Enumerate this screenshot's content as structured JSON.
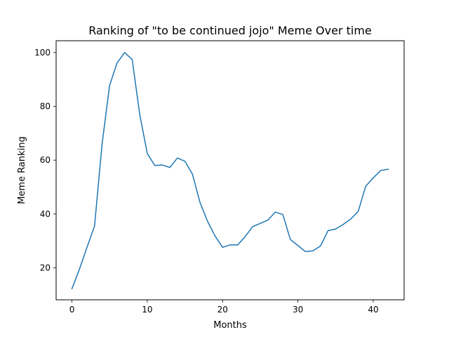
{
  "chart_data": {
    "type": "line",
    "title": "Ranking of \"to be continued jojo\" Meme Over time",
    "xlabel": "Months",
    "ylabel": "Meme Ranking",
    "xlim": [
      -2.1,
      44.1
    ],
    "ylim": [
      8.1,
      104.4
    ],
    "xticks": [
      0,
      10,
      20,
      30,
      40
    ],
    "yticks": [
      20,
      40,
      60,
      80,
      100
    ],
    "grid": false,
    "color": "#1f77b4",
    "series": [
      {
        "name": "Meme Ranking",
        "x": [
          0,
          1,
          2,
          3,
          4,
          5,
          6,
          7,
          8,
          9,
          10,
          11,
          12,
          13,
          14,
          15,
          16,
          17,
          18,
          19,
          20,
          21,
          22,
          23,
          24,
          25,
          26,
          27,
          28,
          29,
          30,
          31,
          32,
          33,
          34,
          35,
          36,
          37,
          38,
          39,
          40,
          41,
          42
        ],
        "values": [
          12.2,
          19.5,
          27.6,
          35.5,
          66,
          87.8,
          96.2,
          100,
          97.4,
          77,
          62.5,
          58,
          58.2,
          57.3,
          60.8,
          59.6,
          54.8,
          44.3,
          37.3,
          31.8,
          27.6,
          28.5,
          28.5,
          31.6,
          35.3,
          36.5,
          37.7,
          40.7,
          39.8,
          30.5,
          28.3,
          26,
          26.3,
          28.1,
          33.8,
          34.4,
          36.1,
          38.1,
          40.9,
          50.3,
          53.4,
          56.2,
          56.6
        ]
      }
    ]
  }
}
